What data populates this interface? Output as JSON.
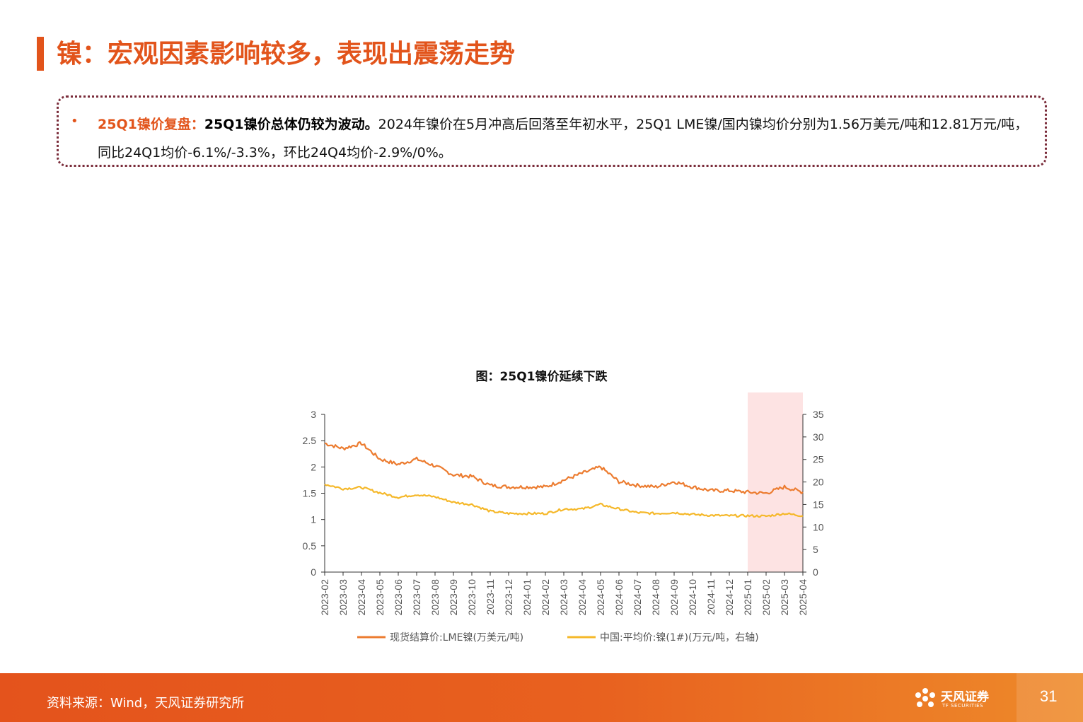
{
  "page": {
    "title": "镍：宏观因素影响较多，表现出震荡走势",
    "page_number": "31"
  },
  "summary": {
    "bullet": "•",
    "label": "25Q1镍价复盘：",
    "headline": "25Q1镍价总体仍较为波动。",
    "body": "2024年镍价在5月冲高后回落至年初水平，25Q1 LME镍/国内镍均价分别为1.56万美元/吨和12.81万元/吨，同比24Q1均价-6.1%/-3.3%，环比24Q4均价-2.9%/0%。"
  },
  "footer": {
    "source": "资料来源：Wind，天风证券研究所",
    "logo_cn": "天风证券",
    "logo_en": "TF SECURITIES"
  },
  "colors": {
    "accent": "#e2541b",
    "lme_line": "#ec7c30",
    "china_line": "#f5b82a",
    "highlight": "#fde3e3"
  },
  "chart_data": {
    "type": "line",
    "title": "图：25Q1镍价延续下跌",
    "x": [
      "2023-02",
      "2023-03",
      "2023-04",
      "2023-05",
      "2023-06",
      "2023-07",
      "2023-08",
      "2023-09",
      "2023-10",
      "2023-11",
      "2023-12",
      "2024-01",
      "2024-02",
      "2024-03",
      "2024-04",
      "2024-05",
      "2024-06",
      "2024-07",
      "2024-08",
      "2024-09",
      "2024-10",
      "2024-11",
      "2024-12",
      "2025-01",
      "2025-02",
      "2025-03",
      "2025-04"
    ],
    "y_left": {
      "min": 0,
      "max": 3,
      "ticks": [
        "0",
        "0.5",
        "1",
        "1.5",
        "2",
        "2.5",
        "3"
      ]
    },
    "y_right": {
      "min": 0,
      "max": 35,
      "ticks": [
        "0",
        "5",
        "10",
        "15",
        "20",
        "25",
        "30",
        "35"
      ]
    },
    "highlight_range": [
      "2025-01",
      "2025-04"
    ],
    "legend_position": "bottom",
    "series": [
      {
        "name": "现货结算价:LME镍(万美元/吨)",
        "axis": "left",
        "values": [
          2.45,
          2.35,
          2.45,
          2.15,
          2.05,
          2.15,
          2.02,
          1.85,
          1.82,
          1.65,
          1.62,
          1.62,
          1.62,
          1.75,
          1.88,
          2.0,
          1.72,
          1.65,
          1.62,
          1.72,
          1.62,
          1.55,
          1.55,
          1.52,
          1.5,
          1.62,
          1.52
        ]
      },
      {
        "name": "中国:平均价:镍(1#)(万元/吨，右轴)",
        "axis": "right",
        "values": [
          19.5,
          18.5,
          18.8,
          17.6,
          16.6,
          17.2,
          16.7,
          15.5,
          15.0,
          13.5,
          13.0,
          13.0,
          13.0,
          14.0,
          14.0,
          15.0,
          14.0,
          13.2,
          13.0,
          13.2,
          12.8,
          12.6,
          12.5,
          12.5,
          12.4,
          13.0,
          12.5
        ]
      }
    ]
  }
}
